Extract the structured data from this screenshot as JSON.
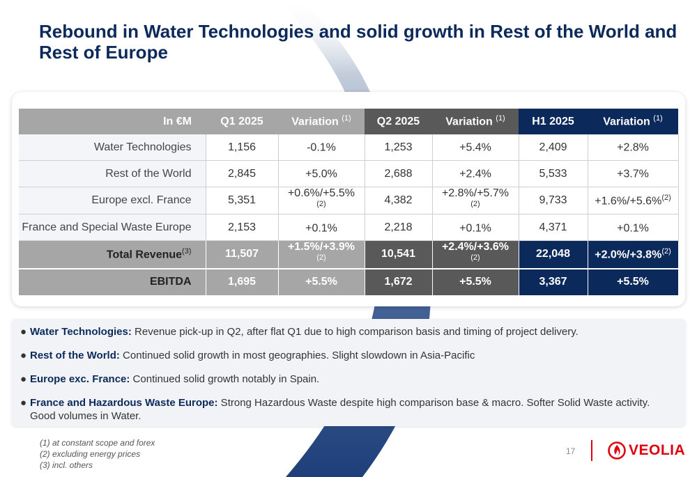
{
  "title": "Rebound in Water Technologies and solid growth in Rest of the World and Rest of Europe",
  "table": {
    "header": {
      "label": "In €M",
      "q1": "Q1 2025",
      "var1": "Variation",
      "var1_sup": "(1)",
      "q2": "Q2 2025",
      "var2": "Variation",
      "var2_sup": "(1)",
      "h1": "H1 2025",
      "var3": "Variation",
      "var3_sup": "(1)"
    },
    "rows": [
      {
        "label": "Water Technologies",
        "q1": "1,156",
        "var1": "-0.1%",
        "var1_sup": "",
        "q2": "1,253",
        "var2": "+5.4%",
        "var2_sup": "",
        "h1": "2,409",
        "var3": "+2.8%",
        "var3_sup": ""
      },
      {
        "label": "Rest of the World",
        "q1": "2,845",
        "var1": "+5.0%",
        "var1_sup": "",
        "q2": "2,688",
        "var2": "+2.4%",
        "var2_sup": "",
        "h1": "5,533",
        "var3": "+3.7%",
        "var3_sup": ""
      },
      {
        "label": "Europe excl. France",
        "q1": "5,351",
        "var1": "+0.6%/+5.5%",
        "var1_sup": "(2)",
        "q2": "4,382",
        "var2": "+2.8%/+5.7%",
        "var2_sup": "(2)",
        "h1": "9,733",
        "var3": "+1.6%/+5.6%",
        "var3_sup": "(2)"
      },
      {
        "label": "France and Special Waste Europe",
        "q1": "2,153",
        "var1": "+0.1%",
        "var1_sup": "",
        "q2": "2,218",
        "var2": "+0.1%",
        "var2_sup": "",
        "h1": "4,371",
        "var3": "+0.1%",
        "var3_sup": ""
      }
    ],
    "total": {
      "label": "Total Revenue",
      "label_sup": "(3)",
      "q1": "11,507",
      "var1": "+1.5%/+3.9%",
      "var1_sup": "(2)",
      "q2": "10,541",
      "var2": "+2.4%/+3.6%",
      "var2_sup": "(2)",
      "h1": "22,048",
      "var3": "+2.0%/+3.8%",
      "var3_sup": "(2)"
    },
    "ebitda": {
      "label": "EBITDA",
      "q1": "1,695",
      "var1": "+5.5%",
      "q2": "1,672",
      "var2": "+5.5%",
      "h1": "3,367",
      "var3": "+5.5%"
    }
  },
  "bullets": [
    {
      "head": "Water Technologies:",
      "text": " Revenue pick-up in Q2, after flat Q1 due to high comparison basis and timing of project delivery.",
      "cont": ""
    },
    {
      "head": "Rest of the World:",
      "text": " Continued solid growth in most geographies. Slight slowdown in Asia-Pacific",
      "cont": ""
    },
    {
      "head": "Europe exc. France:",
      "text": " Continued solid growth notably in Spain.",
      "cont": ""
    },
    {
      "head": "France and Hazardous Waste Europe:",
      "text": " Strong Hazardous Waste despite high comparison base & macro. Softer Solid Waste activity.",
      "cont": "Good volumes in Water."
    }
  ],
  "footnotes": [
    "(1)  at constant scope and forex",
    "(2)  excluding energy prices",
    "(3)  incl. others"
  ],
  "page_number": "17",
  "logo_text": "VEOLIA",
  "colors": {
    "navy": "#0b2a5b",
    "dark_grey": "#595959",
    "grey": "#a6a6a6",
    "veolia_red": "#e1000f"
  },
  "icons": {
    "bullet": "bullet-dot-icon",
    "logo": "veolia-flame-icon"
  }
}
